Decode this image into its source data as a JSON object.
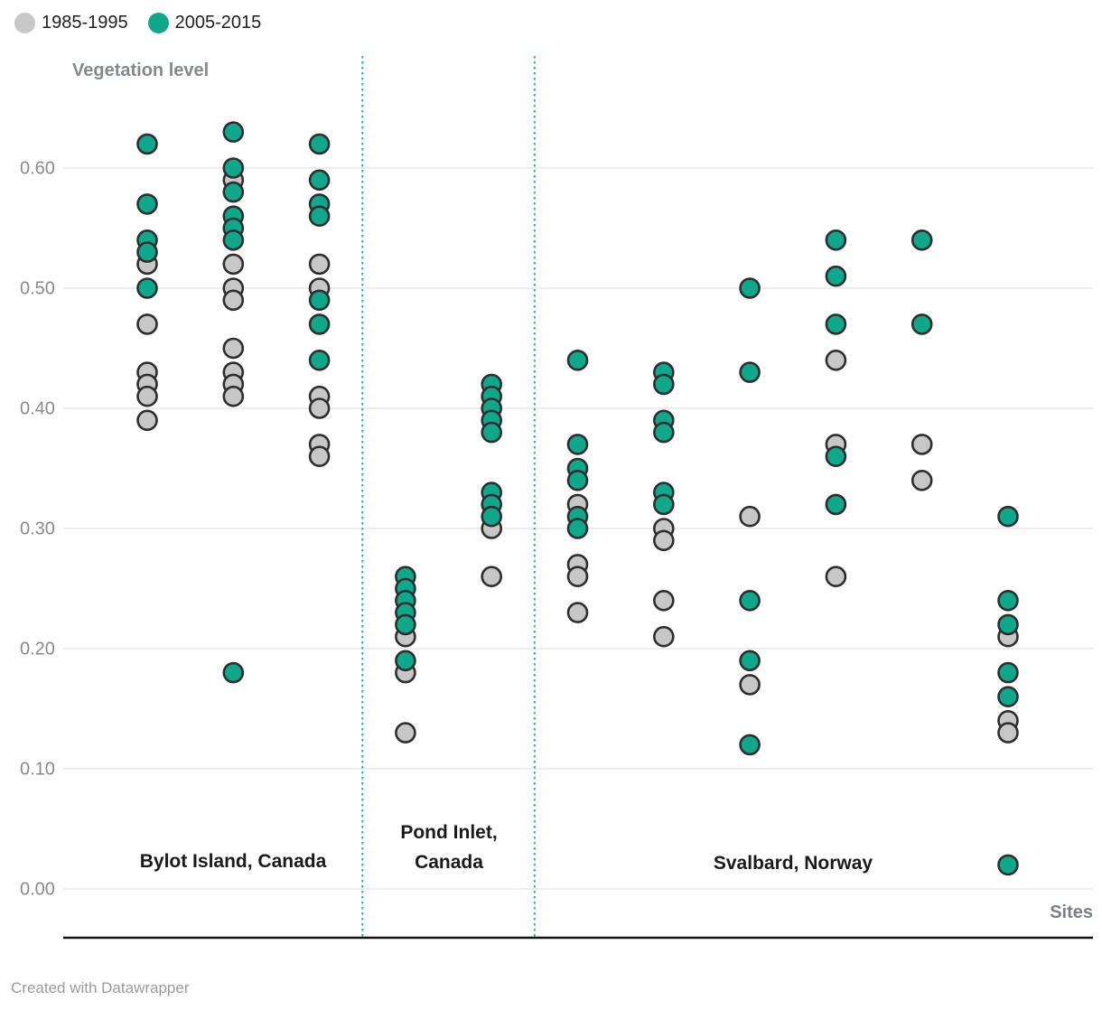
{
  "legend": {
    "items": [
      {
        "label": "1985-1995",
        "color": "#c7c7c7"
      },
      {
        "label": "2005-2015",
        "color": "#11a78a"
      }
    ]
  },
  "colors": {
    "point_stroke": "#2e2e2e",
    "gridline": "#e2e2e2",
    "divider": "#2bb3a0",
    "axis_line": "#111111",
    "tick_text": "#8a8a8a"
  },
  "axis_titles": {
    "y": "Vegetation level",
    "x": "Sites"
  },
  "attribution": "Created with Datawrapper",
  "chart_data": {
    "type": "scatter",
    "title": "",
    "ylabel": "Vegetation level",
    "xlabel": "Sites",
    "ylim": [
      0,
      0.66
    ],
    "grid": true,
    "legend_position": "top-left",
    "series_names": [
      "1985-1995",
      "2005-2015"
    ],
    "ytick_values": [
      0.0,
      0.1,
      0.2,
      0.3,
      0.4,
      0.5,
      0.6
    ],
    "ytick_labels": [
      "0.00",
      "0.10",
      "0.20",
      "0.30",
      "0.40",
      "0.50",
      "0.60"
    ],
    "region_groups": [
      {
        "label": "Bylot Island, Canada",
        "sites": [
          {
            "series": [
              {
                "name": "1985-1995",
                "values": [
                  0.52,
                  0.47,
                  0.43,
                  0.42,
                  0.41,
                  0.39
                ]
              },
              {
                "name": "2005-2015",
                "values": [
                  0.62,
                  0.57,
                  0.54,
                  0.53,
                  0.5
                ]
              }
            ]
          },
          {
            "series": [
              {
                "name": "1985-1995",
                "values": [
                  0.59,
                  0.52,
                  0.5,
                  0.49,
                  0.45,
                  0.43,
                  0.42,
                  0.41
                ]
              },
              {
                "name": "2005-2015",
                "values": [
                  0.63,
                  0.6,
                  0.58,
                  0.56,
                  0.55,
                  0.54,
                  0.18
                ]
              }
            ]
          },
          {
            "series": [
              {
                "name": "1985-1995",
                "values": [
                  0.52,
                  0.5,
                  0.41,
                  0.4,
                  0.37,
                  0.36
                ]
              },
              {
                "name": "2005-2015",
                "values": [
                  0.62,
                  0.59,
                  0.57,
                  0.56,
                  0.49,
                  0.47,
                  0.44
                ]
              }
            ]
          }
        ]
      },
      {
        "label": "Pond Inlet,\nCanada",
        "sites": [
          {
            "series": [
              {
                "name": "1985-1995",
                "values": [
                  0.21,
                  0.18,
                  0.13
                ]
              },
              {
                "name": "2005-2015",
                "values": [
                  0.26,
                  0.25,
                  0.24,
                  0.23,
                  0.22,
                  0.19
                ]
              }
            ]
          },
          {
            "series": [
              {
                "name": "1985-1995",
                "values": [
                  0.3,
                  0.26
                ]
              },
              {
                "name": "2005-2015",
                "values": [
                  0.42,
                  0.41,
                  0.4,
                  0.39,
                  0.38,
                  0.33,
                  0.32,
                  0.31
                ]
              }
            ]
          }
        ]
      },
      {
        "label": "Svalbard, Norway",
        "sites": [
          {
            "series": [
              {
                "name": "1985-1995",
                "values": [
                  0.32,
                  0.27,
                  0.26,
                  0.23
                ]
              },
              {
                "name": "2005-2015",
                "values": [
                  0.44,
                  0.37,
                  0.35,
                  0.34,
                  0.31,
                  0.3
                ]
              }
            ]
          },
          {
            "series": [
              {
                "name": "1985-1995",
                "values": [
                  0.3,
                  0.29,
                  0.24,
                  0.21
                ]
              },
              {
                "name": "2005-2015",
                "values": [
                  0.43,
                  0.42,
                  0.39,
                  0.38,
                  0.33,
                  0.32
                ]
              }
            ]
          },
          {
            "series": [
              {
                "name": "1985-1995",
                "values": [
                  0.31,
                  0.17
                ]
              },
              {
                "name": "2005-2015",
                "values": [
                  0.5,
                  0.43,
                  0.24,
                  0.19,
                  0.12
                ]
              }
            ]
          },
          {
            "series": [
              {
                "name": "1985-1995",
                "values": [
                  0.44,
                  0.37,
                  0.26
                ]
              },
              {
                "name": "2005-2015",
                "values": [
                  0.54,
                  0.51,
                  0.47,
                  0.36,
                  0.32
                ]
              }
            ]
          },
          {
            "series": [
              {
                "name": "1985-1995",
                "values": [
                  0.37,
                  0.34
                ]
              },
              {
                "name": "2005-2015",
                "values": [
                  0.54,
                  0.47
                ]
              }
            ]
          },
          {
            "series": [
              {
                "name": "1985-1995",
                "values": [
                  0.21,
                  0.14,
                  0.13
                ]
              },
              {
                "name": "2005-2015",
                "values": [
                  0.31,
                  0.24,
                  0.22,
                  0.18,
                  0.16,
                  0.02
                ]
              }
            ]
          }
        ]
      }
    ]
  }
}
